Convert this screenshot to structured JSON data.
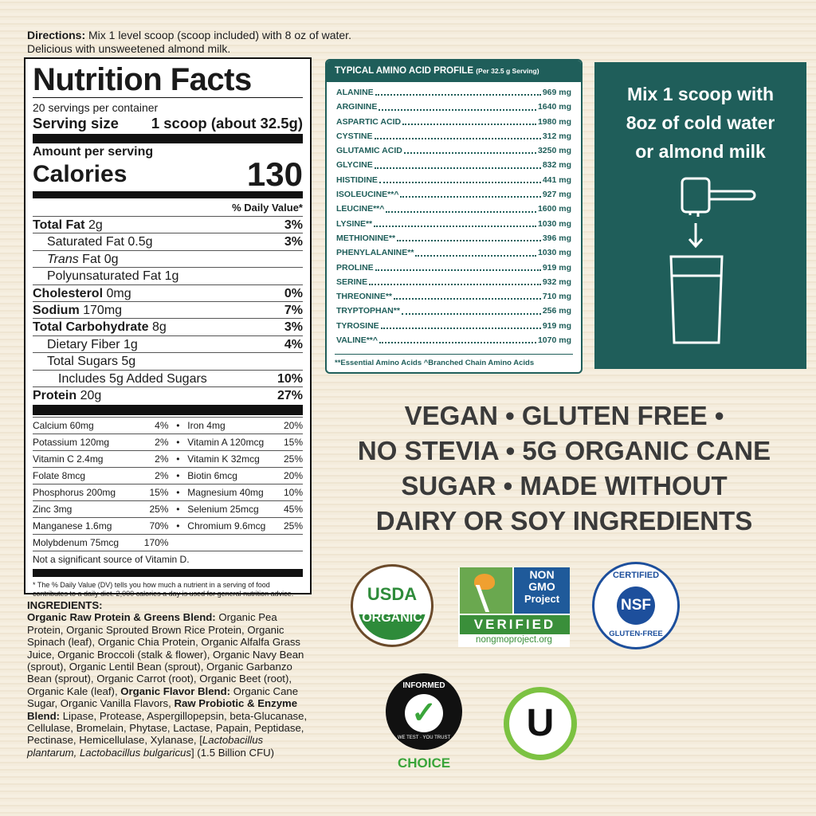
{
  "directions": {
    "label": "Directions:",
    "text": "Mix 1 level scoop (scoop included) with 8 oz of water.",
    "line2": "Delicious with unsweetened almond milk."
  },
  "label": {
    "title": "Nutrition Facts",
    "servings": "20 servings per container",
    "serving_size_label": "Serving size",
    "serving_size_value": "1 scoop (about 32.5g)",
    "amount_per_serving": "Amount per serving",
    "calories_label": "Calories",
    "calories_value": "130",
    "dv_header": "% Daily Value*",
    "nutrients": [
      {
        "name": "Total Fat",
        "amount": "2g",
        "dv": "3%",
        "bold": true,
        "indent": 0
      },
      {
        "name": "Saturated Fat",
        "amount": "0.5g",
        "dv": "3%",
        "bold": false,
        "indent": 1
      },
      {
        "name": "Trans",
        "amount": "Fat  0g",
        "dv": "",
        "bold": false,
        "indent": 1,
        "italic": true
      },
      {
        "name": "Polyunsaturated Fat",
        "amount": "1g",
        "dv": "",
        "bold": false,
        "indent": 1
      },
      {
        "name": "Cholesterol",
        "amount": "0mg",
        "dv": "0%",
        "bold": true,
        "indent": 0
      },
      {
        "name": "Sodium",
        "amount": "170mg",
        "dv": "7%",
        "bold": true,
        "indent": 0
      },
      {
        "name": "Total Carbohydrate",
        "amount": "8g",
        "dv": "3%",
        "bold": true,
        "indent": 0
      },
      {
        "name": "Dietary Fiber",
        "amount": "1g",
        "dv": "4%",
        "bold": false,
        "indent": 1
      },
      {
        "name": "Total Sugars",
        "amount": "5g",
        "dv": "",
        "bold": false,
        "indent": 1
      },
      {
        "name": "Includes 5g Added Sugars",
        "amount": "",
        "dv": "10%",
        "bold": false,
        "indent": 2
      },
      {
        "name": "Protein",
        "amount": "20g",
        "dv": "27%",
        "bold": true,
        "indent": 0
      }
    ],
    "vitamins": [
      [
        "Calcium 60mg",
        "4%",
        "Iron 4mg",
        "20%"
      ],
      [
        "Potassium 120mg",
        "2%",
        "Vitamin A 120mcg",
        "15%"
      ],
      [
        "Vitamin C 2.4mg",
        "2%",
        "Vitamin K 32mcg",
        "25%"
      ],
      [
        "Folate 8mcg",
        "2%",
        "Biotin 6mcg",
        "20%"
      ],
      [
        "Phosphorus 200mg",
        "15%",
        "Magnesium 40mg",
        "10%"
      ],
      [
        "Zinc 3mg",
        "25%",
        "Selenium 25mcg",
        "45%"
      ],
      [
        "Manganese 1.6mg",
        "70%",
        "Chromium 9.6mcg",
        "25%"
      ],
      [
        "Molybdenum 75mcg",
        "170%",
        "",
        ""
      ]
    ],
    "not_significant": "Not a significant source of Vitamin D.",
    "footnote": "* The % Daily Value (DV) tells you how much a nutrient in a serving of food contributes to a daily diet. 2,000 calories a day is used for general nutrition advice."
  },
  "amino": {
    "title": "TYPICAL AMINO ACID PROFILE",
    "subtitle": "(Per 32.5 g Serving)",
    "rows": [
      [
        "ALANINE",
        "969 mg"
      ],
      [
        "ARGININE",
        "1640 mg"
      ],
      [
        "ASPARTIC ACID",
        "1980 mg"
      ],
      [
        "CYSTINE",
        "312 mg"
      ],
      [
        "GLUTAMIC ACID",
        "3250 mg"
      ],
      [
        "GLYCINE",
        "832 mg"
      ],
      [
        "HISTIDINE",
        "441 mg"
      ],
      [
        "ISOLEUCINE**^",
        "927 mg"
      ],
      [
        "LEUCINE**^",
        "1600 mg"
      ],
      [
        "LYSINE**",
        "1030 mg"
      ],
      [
        "METHIONINE**",
        "396 mg"
      ],
      [
        "PHENYLALANINE**",
        "1030 mg"
      ],
      [
        "PROLINE",
        "919 mg"
      ],
      [
        "SERINE",
        "932 mg"
      ],
      [
        "THREONINE**",
        "710 mg"
      ],
      [
        "TRYPTOPHAN**",
        "256 mg"
      ],
      [
        "TYROSINE",
        "919 mg"
      ],
      [
        "VALINE**^",
        "1070 mg"
      ]
    ],
    "footer": "**Essential Amino Acids ^Branched Chain Amino Acids"
  },
  "mix": {
    "lines": [
      "Mix 1 scoop with",
      "8oz of cold water",
      "or almond milk"
    ]
  },
  "claims": {
    "lines": [
      "VEGAN • GLUTEN FREE •",
      "NO STEVIA • 5G ORGANIC CANE",
      "SUGAR  • MADE WITHOUT",
      "DAIRY OR SOY INGREDIENTS"
    ]
  },
  "ingredients": {
    "heading": "INGREDIENTS:",
    "parts": [
      {
        "t": "Organic Raw Protein & Greens Blend:",
        "s": "b"
      },
      {
        "t": " Organic Pea Protein, Organic Sprouted Brown Rice Protein, Organic Spinach (leaf), Organic Chia Protein, Organic Alfalfa Grass Juice, Organic Broccoli (stalk & flower), Organic Navy Bean (sprout), Organic Lentil Bean (sprout), Organic Garbanzo Bean (sprout), Organic Carrot (root), Organic Beet (root), Organic Kale (leaf), ",
        "s": ""
      },
      {
        "t": "Organic Flavor Blend:",
        "s": "b"
      },
      {
        "t": " Organic Cane Sugar, Organic Vanilla Flavors, ",
        "s": ""
      },
      {
        "t": "Raw Probiotic & Enzyme Blend:",
        "s": "b"
      },
      {
        "t": " Lipase, Protease, Aspergillopepsin, beta-Glucanase, Cellulase, Bromelain, Phytase, Lactase, Papain, Peptidase, Pectinase, Hemicellulase, Xylanase, [",
        "s": ""
      },
      {
        "t": "Lactobacillus plantarum, Lactobacillus bulgaricus",
        "s": "i"
      },
      {
        "t": "] (1.5 Billion CFU)",
        "s": ""
      }
    ]
  },
  "logos": {
    "usda": [
      "USDA",
      "ORGANIC"
    ],
    "nongmo": [
      "NON",
      "GMO",
      "Project",
      "VERIFIED",
      "nongmoproject.org"
    ],
    "nsf": [
      "CERTIFIED",
      "NSF",
      "GLUTEN-FREE"
    ],
    "informed": [
      "INFORMED",
      "WE TEST · YOU TRUST",
      "CHOICE"
    ],
    "kosher": "U"
  },
  "colors": {
    "teal": "#1f5e5a",
    "usda_green": "#2e8b3a",
    "nongmo_blue": "#1f5a9a",
    "nsf_blue": "#1d4f9c",
    "informed_green": "#3aa53a",
    "kosher_green": "#7cc242"
  }
}
